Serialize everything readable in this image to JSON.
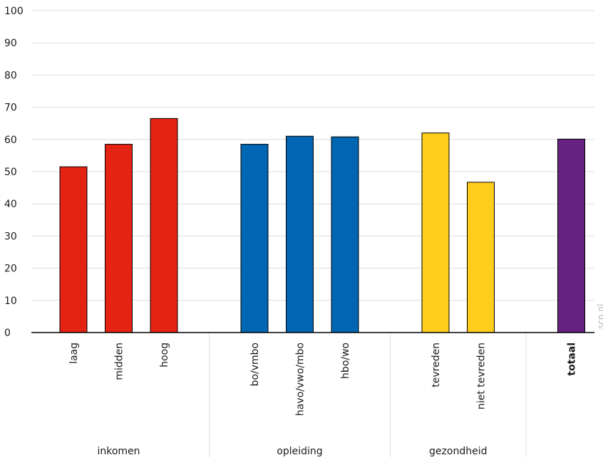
{
  "chart_data": {
    "type": "bar",
    "ylim": [
      0,
      100
    ],
    "yticks": [
      0,
      10,
      20,
      30,
      40,
      50,
      60,
      70,
      80,
      90,
      100
    ],
    "grid": true,
    "groups": [
      {
        "label": "inkomen",
        "color": "#e42313",
        "bars": [
          {
            "category": "laag",
            "value": 51.5
          },
          {
            "category": "midden",
            "value": 58.5
          },
          {
            "category": "hoog",
            "value": 66.5
          }
        ]
      },
      {
        "label": "opleiding",
        "color": "#0066b3",
        "bars": [
          {
            "category": "bo/vmbo",
            "value": 58.5
          },
          {
            "category": "havo/vwo/mbo",
            "value": 61.0
          },
          {
            "category": "hbo/wo",
            "value": 60.8
          }
        ]
      },
      {
        "label": "gezondheid",
        "color": "#ffcd1c",
        "bars": [
          {
            "category": "tevreden",
            "value": 62.0
          },
          {
            "category": "niet tevreden",
            "value": 46.7
          }
        ]
      },
      {
        "label": "",
        "color": "#672281",
        "bars": [
          {
            "category": "totaal",
            "value": 60.1,
            "bold": true
          }
        ]
      }
    ]
  },
  "watermark": "scp.nl"
}
